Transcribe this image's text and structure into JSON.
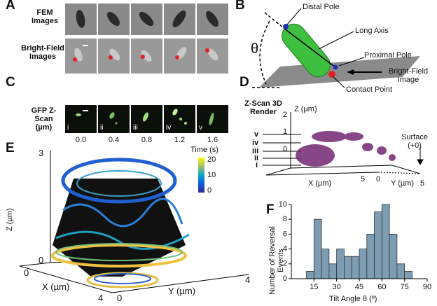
{
  "panel_A": {
    "label": "A",
    "row_labels": [
      "FEM Images",
      "Bright-Field Images"
    ]
  },
  "panel_B": {
    "label": "B",
    "angle_symbol": "θ",
    "annotations": [
      "Distal Pole",
      "Long Axis",
      "Proximal Pole",
      "Bright-Field Image",
      "Contact Point"
    ]
  },
  "panel_C": {
    "label": "C",
    "row_label": "GFP Z-Scan (µm)",
    "frame_labels": [
      "i",
      "ii",
      "iii",
      "iv",
      "v"
    ],
    "z_labels": [
      "0.0",
      "0.4",
      "0.8",
      "1.2",
      "1.6"
    ]
  },
  "panel_D": {
    "label": "D",
    "title": "Z-Scan 3D Render",
    "z_axis_label": "Z (µm)",
    "z_ticks": [
      2,
      1,
      0
    ],
    "level_labels": [
      "v",
      "iv",
      "iii",
      "ii",
      "i"
    ],
    "surface_label": "Surface (+0)",
    "x_axis_label": "X (µm)",
    "x_ticks": [
      5
    ],
    "y_axis_label": "Y (µm)",
    "y_ticks": [
      0,
      5
    ]
  },
  "panel_E": {
    "label": "E",
    "colorbar_title": "Time (s)",
    "colorbar_ticks": [
      20,
      10,
      0
    ],
    "z_axis_label": "Z (µm)",
    "z_ticks": [
      3,
      0
    ],
    "x_axis_label": "X (µm)",
    "x_ticks": [
      0,
      4
    ],
    "y_axis_label": "Y (µm)",
    "y_ticks": [
      0,
      4
    ]
  },
  "panel_F": {
    "label": "F"
  },
  "chart_data": {
    "type": "histogram",
    "bins": [
      10,
      15,
      20,
      25,
      30,
      35,
      40,
      45,
      50,
      55,
      60,
      65,
      70,
      75,
      80
    ],
    "values": [
      1,
      8,
      4,
      2,
      4,
      3,
      3,
      4,
      6,
      9,
      10,
      6,
      2,
      1
    ],
    "color": "#7d9db3",
    "x_label": "Tilt Angle θ (º)",
    "y_label": "Number of Reversal Events",
    "xlim": [
      0,
      90
    ],
    "xticks": [
      15,
      30,
      45,
      60,
      75,
      90
    ],
    "ylim": [
      0,
      10
    ],
    "yticks": [
      0,
      2,
      4,
      6,
      8,
      10
    ]
  }
}
